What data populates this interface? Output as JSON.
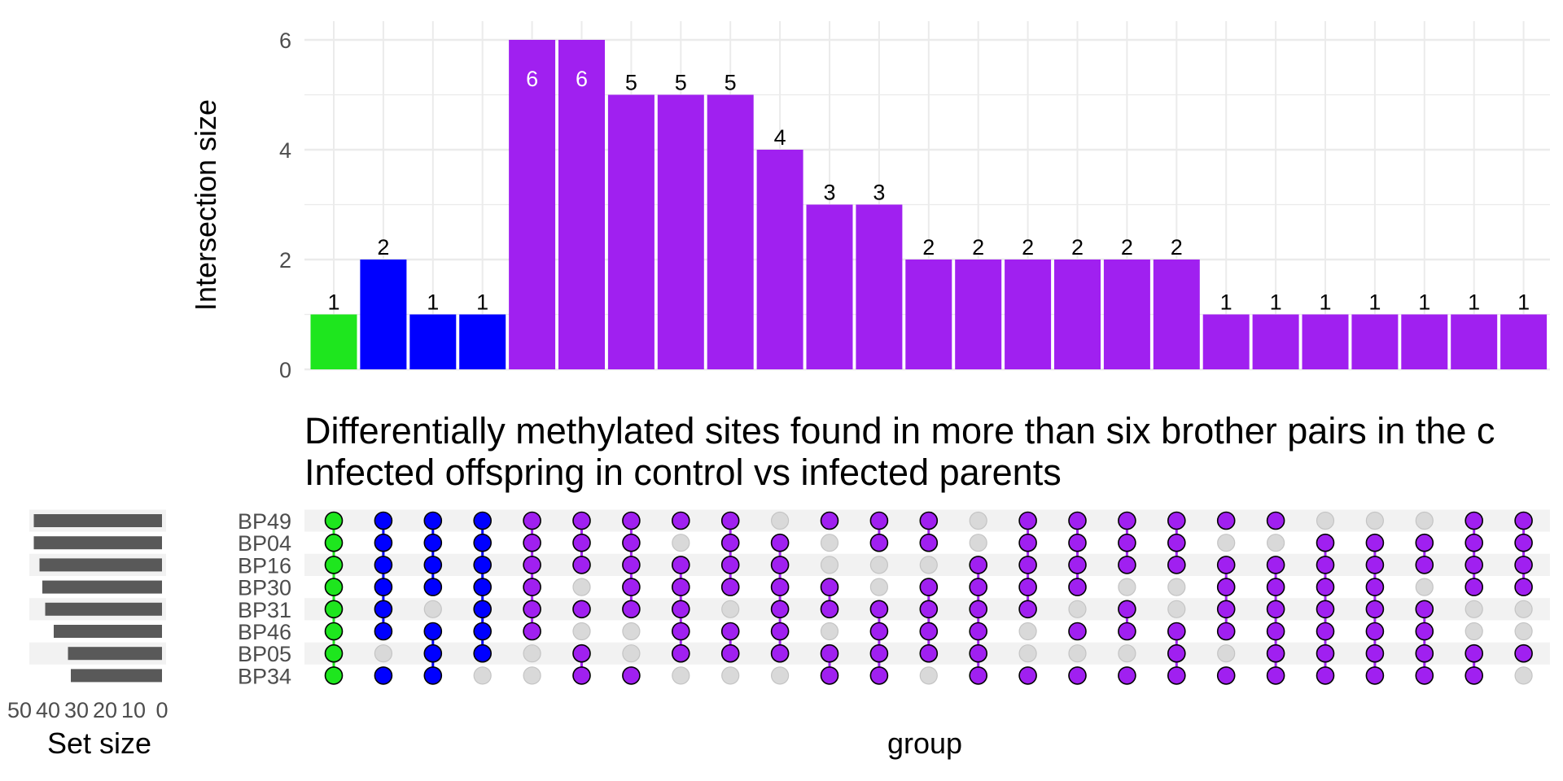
{
  "chart_data": {
    "type": "upset",
    "title": "Differentially methylated sites found in more than six brother pairs in the c",
    "subtitle": "Infected offspring in control vs infected parents",
    "bar_ylabel": "Intersection size",
    "bar_ylim": [
      0,
      6.3
    ],
    "bar_yticks": [
      "0",
      "2",
      "4",
      "6"
    ],
    "matrix_xlabel": "group",
    "set_size_label": "Set size",
    "set_size_ticks": [
      "50",
      "40",
      "30",
      "20",
      "10",
      "0"
    ],
    "set_size_lim": [
      0,
      50
    ],
    "sets": [
      "BP49",
      "BP04",
      "BP16",
      "BP30",
      "BP31",
      "BP46",
      "BP05",
      "BP34"
    ],
    "set_sizes": [
      45,
      45,
      43,
      42,
      41,
      38,
      33,
      32
    ],
    "colors": {
      "green": "#1ee61e",
      "blue": "#0000ff",
      "purple": "#a020f0",
      "empty": "#d9d9d9",
      "set_bar": "#595959"
    },
    "intersections": [
      {
        "value": 1,
        "color": "green",
        "members": [
          "BP49",
          "BP04",
          "BP16",
          "BP30",
          "BP31",
          "BP46",
          "BP05",
          "BP34"
        ]
      },
      {
        "value": 2,
        "color": "blue",
        "members": [
          "BP49",
          "BP04",
          "BP16",
          "BP30",
          "BP31",
          "BP46",
          "BP34"
        ]
      },
      {
        "value": 1,
        "color": "blue",
        "members": [
          "BP49",
          "BP04",
          "BP16",
          "BP30",
          "BP46",
          "BP05",
          "BP34"
        ]
      },
      {
        "value": 1,
        "color": "blue",
        "members": [
          "BP49",
          "BP04",
          "BP16",
          "BP30",
          "BP31",
          "BP46",
          "BP05"
        ]
      },
      {
        "value": 6,
        "color": "purple",
        "members": [
          "BP49",
          "BP04",
          "BP16",
          "BP30",
          "BP31",
          "BP46"
        ]
      },
      {
        "value": 6,
        "color": "purple",
        "members": [
          "BP49",
          "BP04",
          "BP16",
          "BP31",
          "BP05",
          "BP34"
        ]
      },
      {
        "value": 5,
        "color": "purple",
        "members": [
          "BP49",
          "BP04",
          "BP16",
          "BP30",
          "BP31",
          "BP34"
        ]
      },
      {
        "value": 5,
        "color": "purple",
        "members": [
          "BP49",
          "BP16",
          "BP30",
          "BP31",
          "BP46",
          "BP05"
        ]
      },
      {
        "value": 5,
        "color": "purple",
        "members": [
          "BP49",
          "BP04",
          "BP16",
          "BP30",
          "BP46",
          "BP05"
        ]
      },
      {
        "value": 4,
        "color": "purple",
        "members": [
          "BP04",
          "BP16",
          "BP30",
          "BP31",
          "BP46",
          "BP05"
        ]
      },
      {
        "value": 3,
        "color": "purple",
        "members": [
          "BP49",
          "BP30",
          "BP31",
          "BP05",
          "BP34"
        ]
      },
      {
        "value": 3,
        "color": "purple",
        "members": [
          "BP49",
          "BP04",
          "BP31",
          "BP46",
          "BP05",
          "BP34"
        ]
      },
      {
        "value": 2,
        "color": "purple",
        "members": [
          "BP49",
          "BP04",
          "BP30",
          "BP31",
          "BP46",
          "BP05"
        ]
      },
      {
        "value": 2,
        "color": "purple",
        "members": [
          "BP16",
          "BP30",
          "BP31",
          "BP46",
          "BP05",
          "BP34"
        ]
      },
      {
        "value": 2,
        "color": "purple",
        "members": [
          "BP49",
          "BP04",
          "BP16",
          "BP30",
          "BP31",
          "BP34"
        ]
      },
      {
        "value": 2,
        "color": "purple",
        "members": [
          "BP49",
          "BP04",
          "BP16",
          "BP30",
          "BP46",
          "BP34"
        ]
      },
      {
        "value": 2,
        "color": "purple",
        "members": [
          "BP49",
          "BP04",
          "BP16",
          "BP31",
          "BP46",
          "BP34"
        ]
      },
      {
        "value": 2,
        "color": "purple",
        "members": [
          "BP49",
          "BP04",
          "BP16",
          "BP46",
          "BP05",
          "BP34"
        ]
      },
      {
        "value": 1,
        "color": "purple",
        "members": [
          "BP49",
          "BP16",
          "BP30",
          "BP31",
          "BP46",
          "BP34"
        ]
      },
      {
        "value": 1,
        "color": "purple",
        "members": [
          "BP49",
          "BP16",
          "BP30",
          "BP31",
          "BP46",
          "BP05",
          "BP34"
        ]
      },
      {
        "value": 1,
        "color": "purple",
        "members": [
          "BP04",
          "BP16",
          "BP30",
          "BP31",
          "BP46",
          "BP05",
          "BP34"
        ]
      },
      {
        "value": 1,
        "color": "purple",
        "members": [
          "BP04",
          "BP16",
          "BP30",
          "BP31",
          "BP46",
          "BP05",
          "BP34"
        ]
      },
      {
        "value": 1,
        "color": "purple",
        "members": [
          "BP04",
          "BP16",
          "BP31",
          "BP46",
          "BP05",
          "BP34"
        ]
      },
      {
        "value": 1,
        "color": "purple",
        "members": [
          "BP49",
          "BP04",
          "BP16",
          "BP30",
          "BP05",
          "BP34"
        ]
      },
      {
        "value": 1,
        "color": "purple",
        "members": [
          "BP49",
          "BP04",
          "BP16",
          "BP30",
          "BP05"
        ]
      }
    ]
  }
}
